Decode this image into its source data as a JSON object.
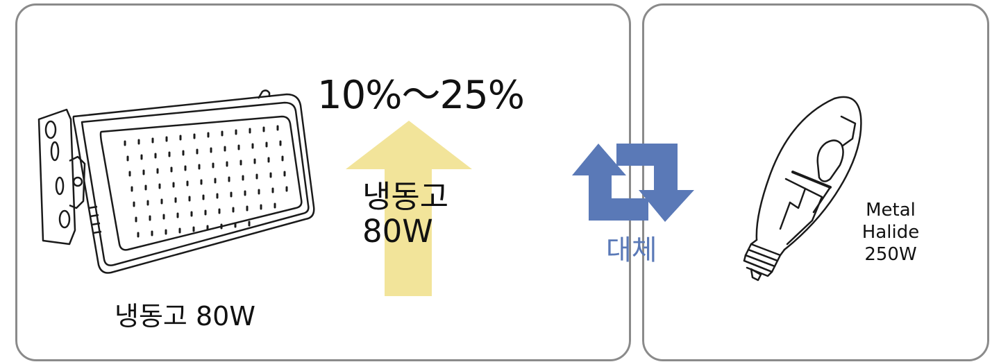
{
  "left_panel": {
    "percent_range": "10%～25%",
    "arrow_label": "냉동고\n80W",
    "product_caption": "냉동고 80W",
    "arrow_icon": "up-arrow-icon",
    "product_icon": "led-floodlight-icon"
  },
  "center": {
    "replace_label": "대체",
    "replace_icon": "swap-arrows-icon"
  },
  "right_panel": {
    "bulb_label": "Metal\nHalide\n250W",
    "bulb_icon": "metal-halide-bulb-icon"
  },
  "colors": {
    "panel_border": "#8a8a8a",
    "arrow_fill": "#f2e49a",
    "swap_arrow": "#5a79b7",
    "replace_text": "#5a79b7",
    "line_art": "#1a1a1a"
  }
}
